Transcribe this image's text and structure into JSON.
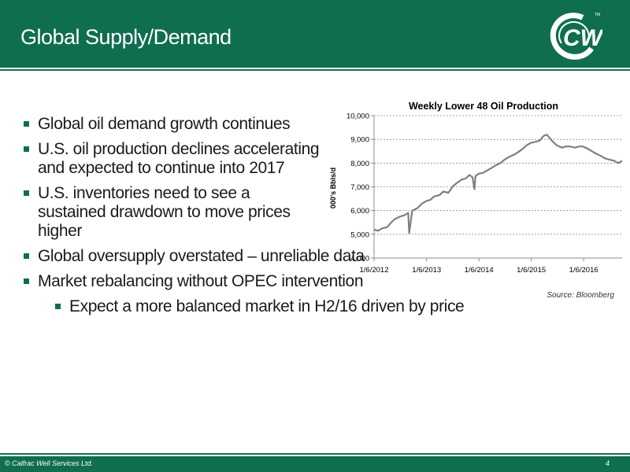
{
  "header": {
    "title": "Global Supply/Demand",
    "logo_text": "CWS",
    "trademark": "TM"
  },
  "bullets": [
    {
      "text": "Global oil demand growth continues",
      "level": 1
    },
    {
      "text": "U.S. oil production declines accelerating and expected to continue into 2017",
      "level": 1
    },
    {
      "text": "U.S. inventories need to see a sustained drawdown to move prices higher",
      "level": 1
    },
    {
      "text": "Global oversupply overstated – unreliable data",
      "level": 1
    },
    {
      "text": "Market rebalancing without OPEC intervention",
      "level": 1
    },
    {
      "text": "Expect a more balanced market in H2/16 driven by price",
      "level": 2
    }
  ],
  "chart_data": {
    "type": "line",
    "title": "Weekly Lower 48 Oil Production",
    "ylabel": "000's Bbls/d",
    "xlabel": "",
    "ylim": [
      4000,
      10000
    ],
    "yticks": [
      "4,000",
      "5,000",
      "6,000",
      "7,000",
      "8,000",
      "9,000",
      "10,000"
    ],
    "ytick_values": [
      4000,
      5000,
      6000,
      7000,
      8000,
      9000,
      10000
    ],
    "xlim": [
      "2012-01-06",
      "2016-09-30"
    ],
    "xticks": [
      "1/6/2012",
      "1/6/2013",
      "1/6/2014",
      "1/6/2015",
      "1/6/2016"
    ],
    "xtick_values": [
      "2012-01-06",
      "2013-01-06",
      "2014-01-06",
      "2015-01-06",
      "2016-01-06"
    ],
    "grid": true,
    "color": "#7f7f7f",
    "series": [
      {
        "x": [
          "2012-01-06",
          "2012-02-03",
          "2012-03-02",
          "2012-04-06",
          "2012-05-04",
          "2012-06-01",
          "2012-07-06",
          "2012-08-03",
          "2012-08-31",
          "2012-09-07",
          "2012-09-28",
          "2012-11-02",
          "2012-12-07",
          "2013-01-04",
          "2013-02-01",
          "2013-03-01",
          "2013-04-05",
          "2013-05-03",
          "2013-06-07",
          "2013-07-05",
          "2013-08-02",
          "2013-09-06",
          "2013-10-04",
          "2013-11-01",
          "2013-11-22",
          "2013-12-06",
          "2013-12-13",
          "2014-01-03",
          "2014-02-07",
          "2014-03-07",
          "2014-04-04",
          "2014-05-02",
          "2014-06-06",
          "2014-07-04",
          "2014-08-01",
          "2014-09-05",
          "2014-10-03",
          "2014-11-07",
          "2014-12-05",
          "2015-01-02",
          "2015-02-06",
          "2015-03-06",
          "2015-04-03",
          "2015-04-24",
          "2015-05-08",
          "2015-06-05",
          "2015-07-03",
          "2015-08-07",
          "2015-09-04",
          "2015-10-02",
          "2015-11-06",
          "2015-12-04",
          "2016-01-01",
          "2016-02-05",
          "2016-03-04",
          "2016-04-01",
          "2016-05-06",
          "2016-06-03",
          "2016-07-01",
          "2016-08-05",
          "2016-09-02",
          "2016-09-30"
        ],
        "y": [
          5200,
          5150,
          5250,
          5300,
          5500,
          5650,
          5750,
          5800,
          5900,
          5050,
          6000,
          6100,
          6300,
          6400,
          6450,
          6600,
          6650,
          6800,
          6750,
          7000,
          7150,
          7300,
          7350,
          7500,
          7400,
          6900,
          7450,
          7550,
          7600,
          7700,
          7800,
          7900,
          8000,
          8150,
          8250,
          8350,
          8450,
          8600,
          8750,
          8850,
          8900,
          8950,
          9150,
          9200,
          9100,
          8900,
          8750,
          8650,
          8700,
          8700,
          8650,
          8700,
          8700,
          8600,
          8500,
          8400,
          8300,
          8200,
          8150,
          8100,
          8000,
          8100
        ]
      }
    ]
  },
  "source": "Source: Bloomberg",
  "footer": {
    "copyright": "© Calfrac Well Services Ltd.",
    "page": "4"
  }
}
